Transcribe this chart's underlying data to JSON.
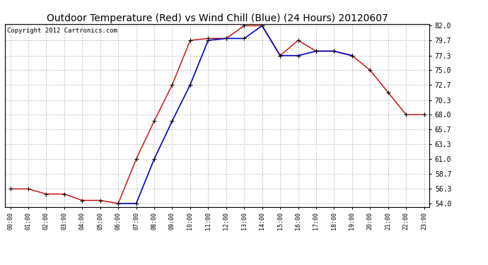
{
  "title": "Outdoor Temperature (Red) vs Wind Chill (Blue) (24 Hours) 20120607",
  "copyright": "Copyright 2012 Cartronics.com",
  "hours": [
    "00:00",
    "01:00",
    "02:00",
    "03:00",
    "04:00",
    "05:00",
    "06:00",
    "07:00",
    "08:00",
    "09:00",
    "10:00",
    "11:00",
    "12:00",
    "13:00",
    "14:00",
    "15:00",
    "16:00",
    "17:00",
    "18:00",
    "19:00",
    "20:00",
    "21:00",
    "22:00",
    "23:00"
  ],
  "temp_red": [
    56.3,
    56.3,
    55.5,
    55.5,
    54.5,
    54.5,
    54.0,
    61.0,
    67.0,
    72.7,
    79.7,
    80.0,
    80.0,
    82.0,
    82.0,
    77.3,
    79.7,
    78.0,
    78.0,
    77.3,
    75.0,
    71.5,
    68.0,
    68.0
  ],
  "wind_chill_blue": [
    null,
    null,
    null,
    null,
    null,
    null,
    54.0,
    54.0,
    61.0,
    67.0,
    72.7,
    79.7,
    80.0,
    80.0,
    82.0,
    77.3,
    77.3,
    78.0,
    78.0,
    77.3,
    null,
    null,
    null,
    null
  ],
  "ylim_min": 53.5,
  "ylim_max": 82.3,
  "yticks": [
    54.0,
    56.3,
    58.7,
    61.0,
    63.3,
    65.7,
    68.0,
    70.3,
    72.7,
    75.0,
    77.3,
    79.7,
    82.0
  ],
  "bg_color": "#ffffff",
  "plot_bg": "#ffffff",
  "grid_color": "#c8c8c8",
  "red_color": "#cc0000",
  "blue_color": "#0000cc",
  "title_fontsize": 10,
  "copyright_fontsize": 6.5,
  "tick_fontsize": 7,
  "xtick_fontsize": 6
}
